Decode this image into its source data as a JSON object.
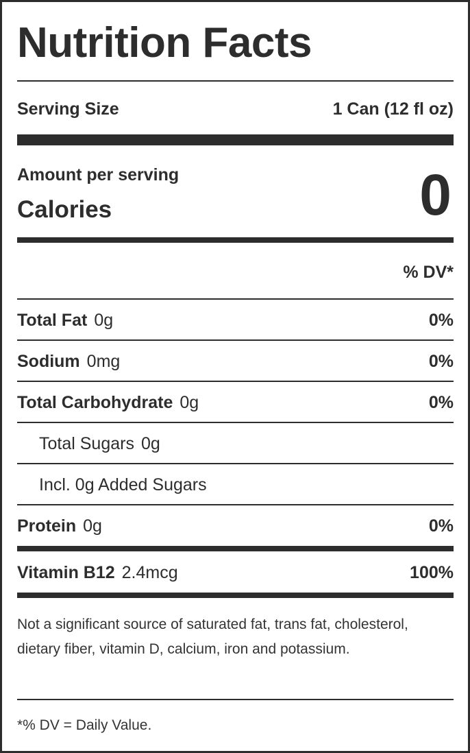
{
  "title": "Nutrition Facts",
  "serving": {
    "label": "Serving Size",
    "value": "1 Can (12 fl oz)"
  },
  "amount_label": "Amount per serving",
  "calories": {
    "label": "Calories",
    "value": "0"
  },
  "dv_header": "% DV*",
  "nutrients": [
    {
      "name": "Total Fat",
      "amount": "0g",
      "dv": "0%"
    },
    {
      "name": "Sodium",
      "amount": "0mg",
      "dv": "0%"
    },
    {
      "name": "Total Carbohydrate",
      "amount": "0g",
      "dv": "0%"
    },
    {
      "name": "Total Sugars",
      "amount": "0g",
      "dv": ""
    },
    {
      "name": "Incl. 0g Added Sugars",
      "amount": "",
      "dv": ""
    },
    {
      "name": "Protein",
      "amount": "0g",
      "dv": "0%"
    }
  ],
  "vitamins": [
    {
      "name": "Vitamin B12",
      "amount": "2.4mcg",
      "dv": "100%"
    }
  ],
  "disclaimer": "Not a significant source of saturated fat, trans fat, cholesterol, dietary fiber, vitamin D, calcium, iron and potassium.",
  "footnote": "*% DV = Daily Value."
}
